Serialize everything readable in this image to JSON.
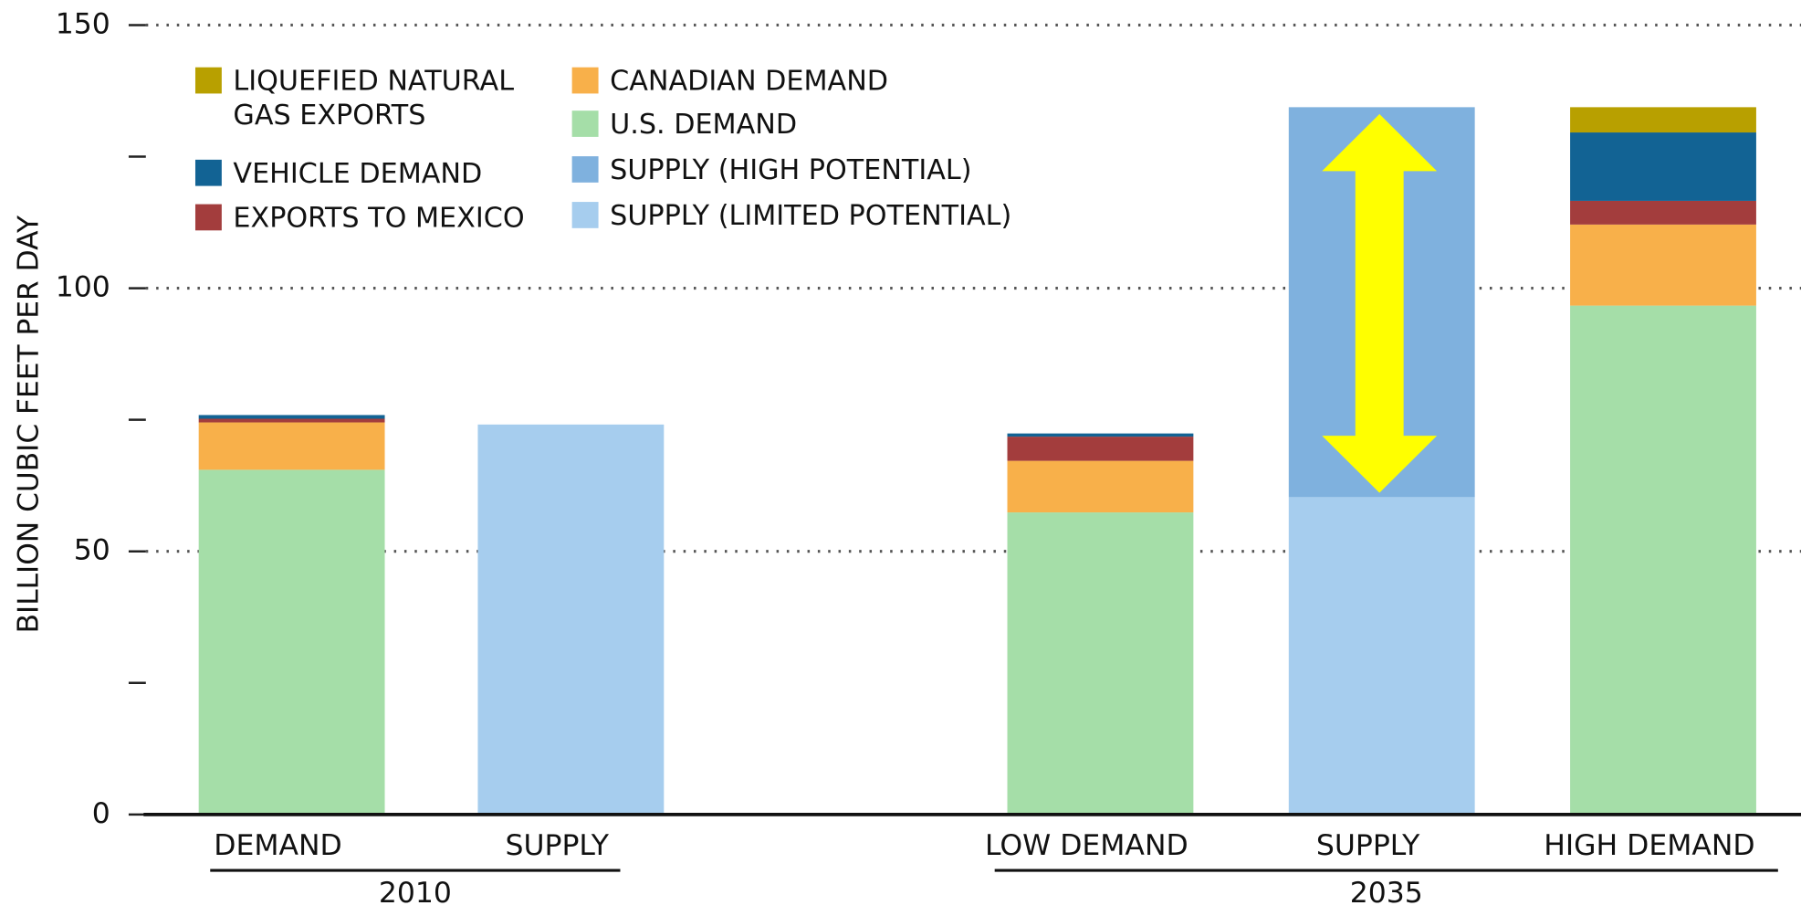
{
  "chart_data": {
    "type": "stacked_bar",
    "y_label": "BILLION CUBIC FEET  PER DAY",
    "categories": [
      "DEMAND",
      "SUPPLY",
      "LOW DEMAND",
      "SUPPLY",
      "HIGH DEMAND"
    ],
    "groups": [
      "2010",
      "2035"
    ],
    "series": [
      {
        "name": "U.S. DEMAND",
        "color": "#a5dea8",
        "values": [
          65.5,
          null,
          57.4,
          null,
          96.7
        ]
      },
      {
        "name": "CANADIAN DEMAND",
        "color": "#f8b04a",
        "values": [
          9,
          null,
          9.8,
          null,
          15.4
        ]
      },
      {
        "name": "EXPORTS TO MEXICO",
        "color": "#a33d3d",
        "values": [
          0.7,
          null,
          4.6,
          null,
          4.5
        ]
      },
      {
        "name": "VEHICLE DEMAND",
        "color": "#126394",
        "values": [
          0.7,
          null,
          0.6,
          null,
          13
        ]
      },
      {
        "name": "LIQUEFIED NATURAL GAS EXPORTS",
        "color": "#b8a000",
        "values": [
          null,
          null,
          null,
          null,
          4.8
        ]
      },
      {
        "name": "SUPPLY (LIMITED POTENTIAL)",
        "color": "#a6cdee",
        "values": [
          null,
          74.1,
          null,
          60.3,
          null
        ]
      },
      {
        "name": "SUPPLY (HIGH POTENTIAL)",
        "color": "#7fb1de",
        "values": [
          null,
          null,
          null,
          74.1,
          null
        ]
      }
    ],
    "ylim": [
      0,
      150
    ],
    "yticks": [
      0,
      50,
      100,
      150
    ],
    "minor_yticks": [
      25,
      75,
      125
    ],
    "grid": true
  }
}
